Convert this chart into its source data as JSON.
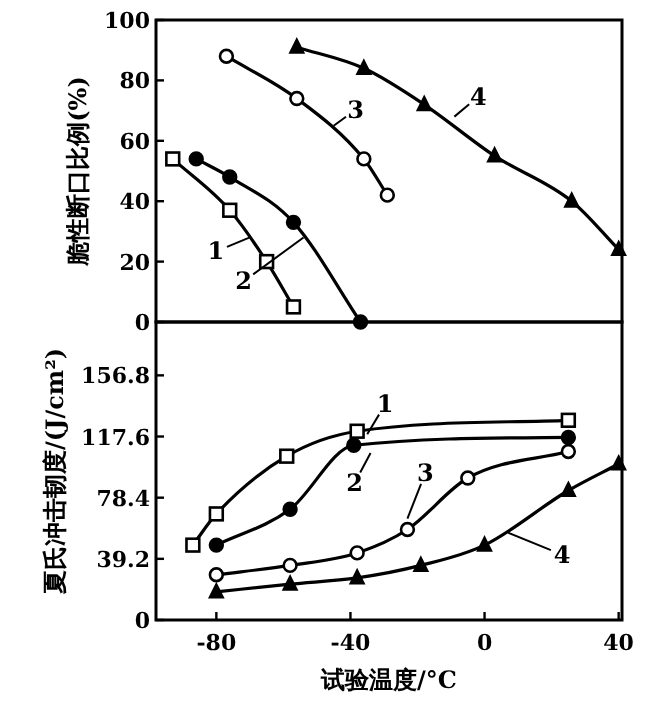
{
  "chart_data": [
    {
      "type": "line",
      "ylabel": "脆性断口比例(%)",
      "xlim": [
        -98,
        41
      ],
      "ylim": [
        0,
        100
      ],
      "yticks": [
        0,
        20,
        40,
        60,
        80,
        100
      ],
      "tick_labels": "y",
      "grid": false,
      "series": [
        {
          "color": "#000000",
          "marker": "square",
          "x": [
            -93,
            -76,
            -65,
            -57
          ],
          "values": [
            54,
            37,
            20,
            5
          ]
        },
        {
          "color": "#000000",
          "marker": "circle",
          "x": [
            -86,
            -76,
            -57,
            -37
          ],
          "values": [
            54,
            48,
            33,
            0
          ]
        },
        {
          "color": "#000000",
          "marker": "circle",
          "x": [
            -77,
            -56,
            -36,
            -29
          ],
          "values": [
            88,
            74,
            54,
            42
          ]
        },
        {
          "color": "#000000",
          "marker": "triangle",
          "x": [
            -56,
            -36,
            -18,
            3,
            26,
            40
          ],
          "values": [
            91,
            84,
            72,
            55,
            40,
            24
          ]
        }
      ],
      "annotations": [
        {
          "text": "1",
          "x": -70,
          "y": 28
        },
        {
          "text": "2",
          "x": -54,
          "y": 28
        },
        {
          "text": "3",
          "x": -45,
          "y": 65
        },
        {
          "text": "4",
          "x": -9,
          "y": 68
        }
      ]
    },
    {
      "type": "line",
      "ylabel": "夏氏冲击韧度/(J/cm²)",
      "xlabel": "试验温度/°C",
      "xlim": [
        -98,
        41
      ],
      "ylim": [
        0,
        191
      ],
      "yticks": [
        0,
        39.2,
        78.4,
        117.6,
        156.8
      ],
      "xticks": [
        -80,
        -40,
        0,
        40
      ],
      "grid": false,
      "series": [
        {
          "color": "#000000",
          "marker": "square",
          "x": [
            -87,
            -80,
            -59,
            -38,
            25
          ],
          "values": [
            48,
            68,
            105,
            121,
            128
          ]
        },
        {
          "color": "#000000",
          "marker": "circle",
          "x": [
            -80,
            -58,
            -39,
            25
          ],
          "values": [
            48,
            71,
            112,
            117
          ]
        },
        {
          "color": "#000000",
          "marker": "circle",
          "x": [
            -80,
            -58,
            -38,
            -23,
            -5,
            25
          ],
          "values": [
            29,
            35,
            43,
            58,
            91,
            108
          ]
        },
        {
          "color": "#000000",
          "marker": "triangle",
          "x": [
            -80,
            -58,
            -38,
            -19,
            0,
            25,
            40
          ],
          "values": [
            18,
            23,
            27,
            35,
            48,
            83,
            100
          ]
        }
      ],
      "annotations": [
        {
          "text": "1",
          "x": -35,
          "y": 119
        },
        {
          "text": "2",
          "x": -34,
          "y": 107
        },
        {
          "text": "3",
          "x": -23,
          "y": 65
        },
        {
          "text": "4",
          "x": 7,
          "y": 56
        }
      ]
    }
  ]
}
